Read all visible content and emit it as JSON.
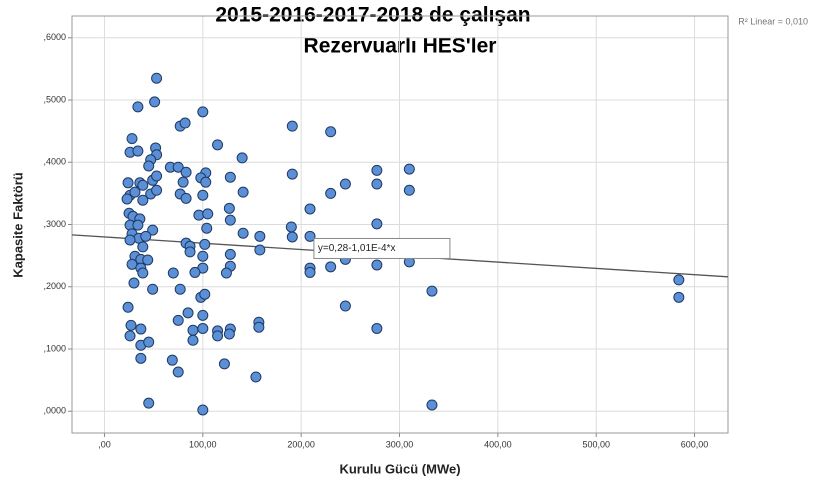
{
  "chart_data": {
    "type": "scatter",
    "title": [
      "2015-2016-2017-2018 de çalışan",
      "Rezervuarlı HES'ler"
    ],
    "x_label": "Kurulu Gücü (MWe)",
    "y_label": "Kapasite Faktörü",
    "r2_label": "R² Linear = 0,010",
    "fit": {
      "intercept": 0.28,
      "slope": -0.000101,
      "label": "y=0,28-1,01E-4*x",
      "color": "#555555"
    },
    "color": "#5b8fd6",
    "edge_color": "#1f3a63",
    "grid": true,
    "xlim": [
      -33,
      634
    ],
    "ylim": [
      -0.035,
      0.635
    ],
    "xticks": [
      {
        "value": 0,
        "label": ",00"
      },
      {
        "value": 100,
        "label": "100,00"
      },
      {
        "value": 200,
        "label": "200,00"
      },
      {
        "value": 300,
        "label": "300,00"
      },
      {
        "value": 400,
        "label": "400,00"
      },
      {
        "value": 500,
        "label": "500,00"
      },
      {
        "value": 600,
        "label": "600,00"
      }
    ],
    "yticks": [
      {
        "value": 0,
        "label": ",0000"
      },
      {
        "value": 0.1,
        "label": ",1000"
      },
      {
        "value": 0.2,
        "label": ",2000"
      },
      {
        "value": 0.3,
        "label": ",3000"
      },
      {
        "value": 0.4,
        "label": ",4000"
      },
      {
        "value": 0.5,
        "label": ",5000"
      },
      {
        "value": 0.6,
        "label": ",6000"
      }
    ],
    "x": [
      53,
      34,
      51,
      100,
      77,
      82,
      28,
      26,
      34,
      115,
      191,
      230,
      52,
      53,
      47,
      45,
      67,
      75,
      103,
      98,
      140,
      83,
      128,
      191,
      277,
      310,
      24,
      36,
      39,
      49,
      53,
      80,
      103,
      245,
      277,
      310,
      26,
      31,
      47,
      53,
      77,
      100,
      141,
      230,
      39,
      23,
      83,
      25,
      29,
      36,
      96,
      105,
      127,
      209,
      26,
      34,
      49,
      104,
      128,
      277,
      190,
      28,
      35,
      42,
      83,
      87,
      102,
      141,
      158,
      191,
      209,
      26,
      39,
      31,
      37,
      44,
      87,
      100,
      128,
      158,
      245,
      245,
      28,
      37,
      70,
      100,
      128,
      209,
      209,
      230,
      277,
      310,
      30,
      39,
      92,
      124,
      49,
      77,
      98,
      102,
      584,
      584,
      333,
      24,
      100,
      85,
      75,
      245,
      157,
      157,
      27,
      37,
      90,
      100,
      115,
      128,
      277,
      26,
      90,
      115,
      127,
      37,
      45,
      37,
      69,
      122,
      75,
      154,
      45,
      333,
      100
    ],
    "values": [
      0.535,
      0.489,
      0.497,
      0.481,
      0.458,
      0.463,
      0.438,
      0.416,
      0.418,
      0.428,
      0.458,
      0.449,
      0.423,
      0.412,
      0.404,
      0.394,
      0.392,
      0.392,
      0.383,
      0.375,
      0.407,
      0.384,
      0.376,
      0.381,
      0.387,
      0.389,
      0.367,
      0.367,
      0.363,
      0.371,
      0.378,
      0.368,
      0.368,
      0.365,
      0.365,
      0.355,
      0.347,
      0.352,
      0.349,
      0.355,
      0.349,
      0.347,
      0.352,
      0.35,
      0.339,
      0.341,
      0.342,
      0.318,
      0.313,
      0.309,
      0.315,
      0.317,
      0.326,
      0.325,
      0.299,
      0.299,
      0.291,
      0.294,
      0.307,
      0.301,
      0.296,
      0.285,
      0.278,
      0.281,
      0.27,
      0.265,
      0.268,
      0.286,
      0.281,
      0.28,
      0.281,
      0.275,
      0.264,
      0.249,
      0.244,
      0.243,
      0.256,
      0.249,
      0.252,
      0.259,
      0.252,
      0.244,
      0.236,
      0.23,
      0.222,
      0.23,
      0.233,
      0.23,
      0.223,
      0.232,
      0.235,
      0.24,
      0.206,
      0.222,
      0.223,
      0.222,
      0.196,
      0.196,
      0.183,
      0.188,
      0.211,
      0.183,
      0.193,
      0.167,
      0.154,
      0.158,
      0.146,
      0.169,
      0.143,
      0.135,
      0.138,
      0.132,
      0.13,
      0.133,
      0.129,
      0.132,
      0.133,
      0.121,
      0.114,
      0.121,
      0.124,
      0.106,
      0.111,
      0.085,
      0.082,
      0.076,
      0.063,
      0.055,
      0.013,
      0.01,
      0.002
    ]
  }
}
